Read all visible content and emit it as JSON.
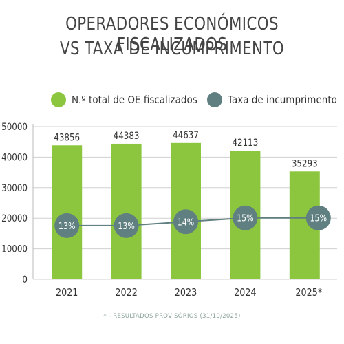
{
  "title_line1": "OPERADORES ECONÓMICOS FISCALIZADOS",
  "title_line2": "VS TAXA DE INCUMPRIMENTO",
  "footnote": "* - RESULTADOS PROVISÓRIOS (31/10/2025)",
  "colors": {
    "bar": "#8cc63f",
    "line": "#5f7f80",
    "grid": "#d0d0d0"
  },
  "chart_data": {
    "type": "bar",
    "categories": [
      "2021",
      "2022",
      "2023",
      "2024",
      "2025*"
    ],
    "series": [
      {
        "name": "N.º total de OE fiscalizados",
        "type": "bar",
        "values": [
          43856,
          44383,
          44637,
          42113,
          35293
        ],
        "labels": [
          "43856",
          "44383",
          "44637",
          "42113",
          "35293"
        ]
      },
      {
        "name": "Taxa de incumprimento",
        "type": "line",
        "values": [
          13,
          13,
          14,
          15,
          15
        ],
        "labels": [
          "13%",
          "13%",
          "14%",
          "15%",
          "15%"
        ]
      }
    ],
    "ylim": [
      0,
      50000
    ],
    "yticks": [
      "0",
      "10000",
      "20000",
      "30000",
      "40000",
      "50000"
    ],
    "grid": true,
    "legend_position": "top"
  }
}
